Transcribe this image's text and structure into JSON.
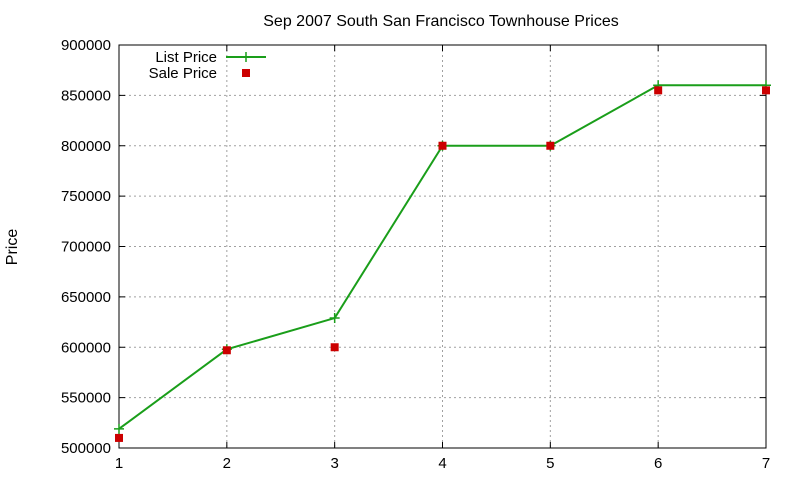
{
  "chart_data": {
    "type": "line",
    "title": "Sep 2007 South San Francisco Townhouse Prices",
    "xlabel": "",
    "ylabel": "Price",
    "xlim": [
      1,
      7
    ],
    "ylim": [
      500000,
      900000
    ],
    "x_ticks": [
      1,
      2,
      3,
      4,
      5,
      6,
      7
    ],
    "y_ticks": [
      500000,
      550000,
      600000,
      650000,
      700000,
      750000,
      800000,
      850000,
      900000
    ],
    "grid": true,
    "legend_position": "top-left",
    "series": [
      {
        "name": "List Price",
        "style": "line+plus",
        "color": "#1a9e1a",
        "x": [
          1,
          2,
          3,
          4,
          5,
          6,
          7
        ],
        "y": [
          519000,
          598000,
          629000,
          800000,
          800000,
          860000,
          860000
        ]
      },
      {
        "name": "Sale Price",
        "style": "square",
        "color": "#cc0000",
        "x": [
          1,
          2,
          3,
          4,
          5,
          6,
          7
        ],
        "y": [
          510000,
          597000,
          600000,
          800000,
          800000,
          855000,
          855000
        ]
      }
    ]
  }
}
